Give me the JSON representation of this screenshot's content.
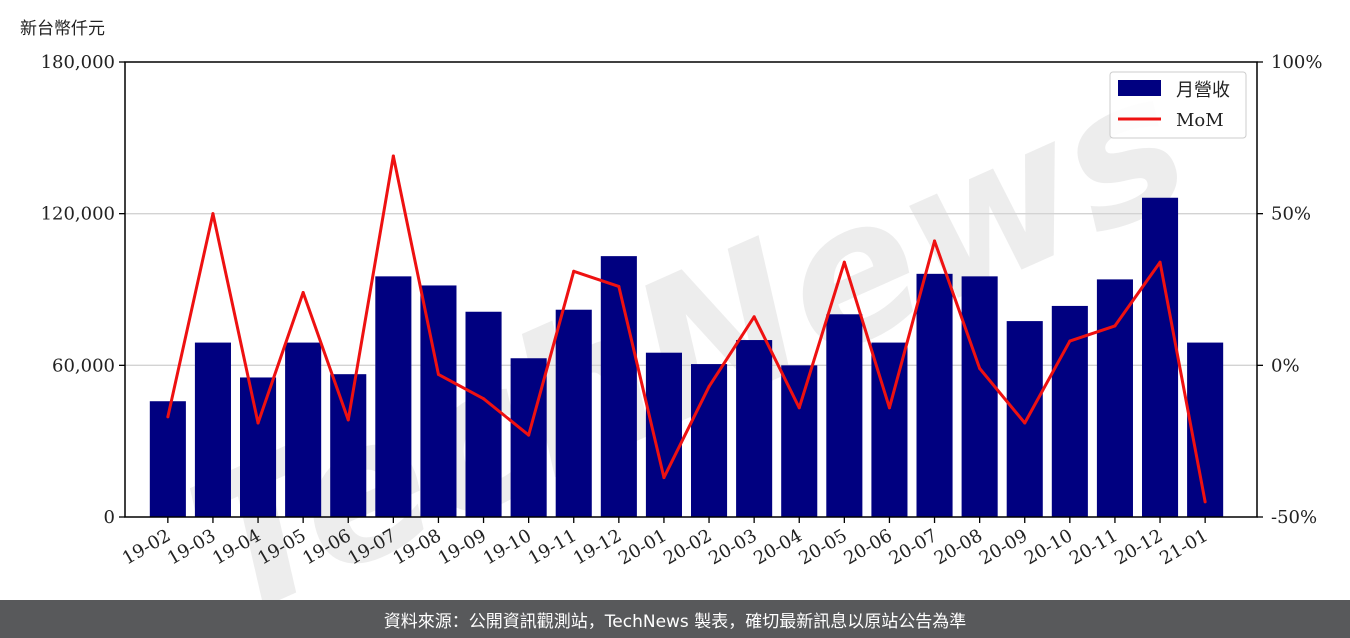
{
  "chart_data": {
    "type": "bar+line",
    "y_left_unit_label": "新台幣仟元",
    "categories": [
      "19-02",
      "19-03",
      "19-04",
      "19-05",
      "19-06",
      "19-07",
      "19-08",
      "19-09",
      "19-10",
      "19-11",
      "19-12",
      "20-01",
      "20-02",
      "20-03",
      "20-04",
      "20-05",
      "20-06",
      "20-07",
      "20-08",
      "20-09",
      "20-10",
      "20-11",
      "20-12",
      "21-01"
    ],
    "series": [
      {
        "name": "月營收",
        "type": "bar",
        "axis": "left",
        "color": "#000080",
        "values": [
          45800,
          69000,
          55200,
          69000,
          56500,
          95200,
          91600,
          81200,
          62800,
          82000,
          103200,
          65000,
          60500,
          70000,
          60000,
          80200,
          69000,
          96200,
          95200,
          77500,
          83500,
          94000,
          126300,
          69000
        ]
      },
      {
        "name": "MoM",
        "type": "line",
        "axis": "right",
        "color": "#ee1111",
        "values": [
          -17,
          50,
          -19,
          24,
          -18,
          69,
          -3,
          -11,
          -23,
          31,
          26,
          -37,
          -7,
          16,
          -14,
          34,
          -14,
          41,
          -1,
          -19,
          8,
          13,
          34,
          -45
        ]
      }
    ],
    "y_left": {
      "min": 0,
      "max": 180000,
      "ticks": [
        "0",
        "60,000",
        "120,000",
        "180,000"
      ],
      "tick_values": [
        0,
        60000,
        120000,
        180000
      ]
    },
    "y_right": {
      "min": -50,
      "max": 100,
      "ticks": [
        "-50%",
        "0%",
        "50%",
        "100%"
      ],
      "tick_values": [
        -50,
        0,
        50,
        100
      ]
    },
    "grid": "horizontal",
    "legend_position": "top-right"
  },
  "watermark": "TechNews",
  "footer_text": "資料來源：公開資訊觀測站，TechNews 製表，確切最新訊息以原站公告為準"
}
